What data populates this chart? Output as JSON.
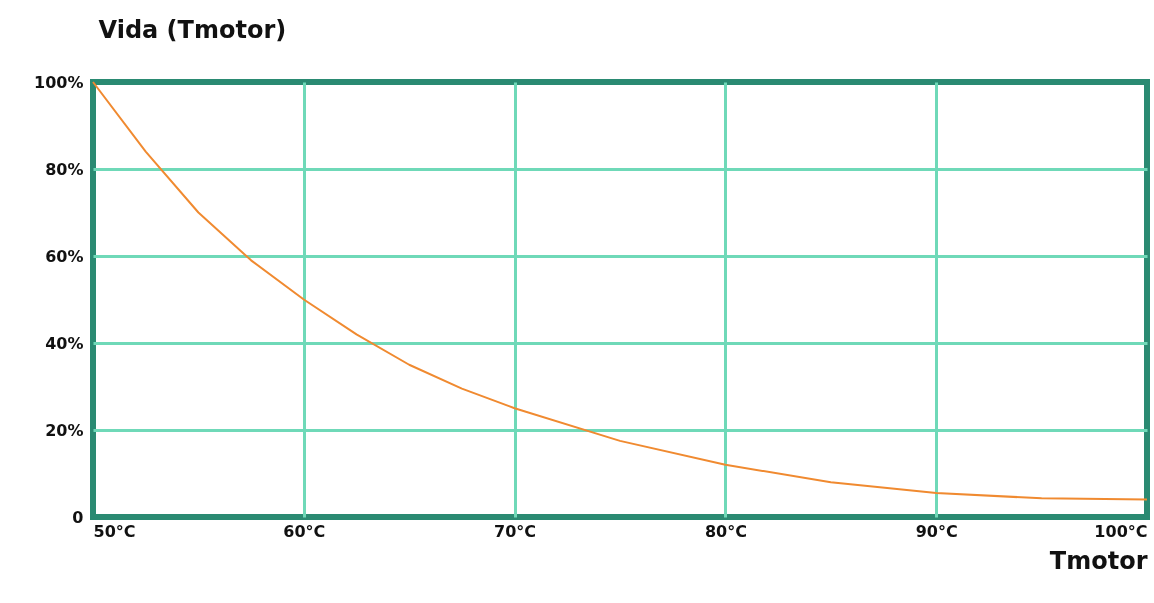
{
  "chart_data": {
    "type": "line",
    "ylabel": "Vida (Tmotor)",
    "xlabel": "Tmotor",
    "x": [
      50,
      52.5,
      55,
      57.5,
      60,
      62.5,
      65,
      67.5,
      70,
      75,
      80,
      85,
      90,
      95,
      100
    ],
    "series": [
      {
        "color": "#f08a30",
        "values": [
          100,
          84,
          70,
          59,
          50,
          42,
          35,
          29.5,
          25,
          17.5,
          12,
          8,
          5.5,
          4.3,
          4
        ]
      }
    ],
    "xlim": [
      50,
      100
    ],
    "xticks": [
      {
        "value": 50,
        "label": "50°C"
      },
      {
        "value": 60,
        "label": "60°C"
      },
      {
        "value": 70,
        "label": "70°C"
      },
      {
        "value": 80,
        "label": "80°C"
      },
      {
        "value": 90,
        "label": "90°C"
      },
      {
        "value": 100,
        "label": "100°C"
      }
    ],
    "ylim": [
      0,
      100
    ],
    "yticks": [
      {
        "value": 0,
        "label": "0"
      },
      {
        "value": 20,
        "label": "20%"
      },
      {
        "value": 40,
        "label": "40%"
      },
      {
        "value": 60,
        "label": "60%"
      },
      {
        "value": 80,
        "label": "80%"
      },
      {
        "value": 100,
        "label": "100%"
      }
    ],
    "grid": true,
    "marker": "none",
    "line_style": "solid"
  }
}
